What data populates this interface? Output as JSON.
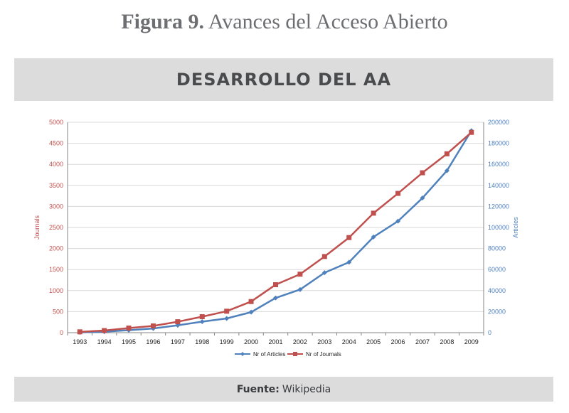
{
  "figure": {
    "label": "Figura 9.",
    "caption": "Avances del Acceso Abierto"
  },
  "banner": {
    "title": "DESARROLLO DEL AA"
  },
  "source": {
    "label": "Fuente:",
    "value": "Wikipedia"
  },
  "colors": {
    "journals": "#c0504d",
    "articles": "#4f81bd"
  },
  "chart_data": {
    "type": "line",
    "title": "",
    "x": [
      "1993",
      "1994",
      "1995",
      "1996",
      "1997",
      "1998",
      "1999",
      "2000",
      "2001",
      "2002",
      "2003",
      "2004",
      "2005",
      "2006",
      "2007",
      "2008",
      "2009"
    ],
    "y_left": {
      "label": "Journals",
      "range": [
        0,
        5000
      ],
      "ticks": [
        0,
        500,
        1000,
        1500,
        2000,
        2500,
        3000,
        3500,
        4000,
        4500,
        5000
      ]
    },
    "y_right": {
      "label": "Articles",
      "range": [
        0,
        200000
      ],
      "ticks": [
        0,
        20000,
        40000,
        60000,
        80000,
        100000,
        120000,
        140000,
        160000,
        180000,
        200000
      ]
    },
    "series": [
      {
        "name": "Nr of Articles",
        "axis": "right",
        "color": "#4f81bd",
        "marker": "diamond",
        "values": [
          300,
          900,
          2400,
          4000,
          7000,
          10500,
          13500,
          19500,
          33000,
          41000,
          57000,
          67000,
          91000,
          106000,
          128000,
          154000,
          192000
        ]
      },
      {
        "name": "Nr of Journals",
        "axis": "left",
        "color": "#c0504d",
        "marker": "square",
        "values": [
          20,
          50,
          110,
          160,
          260,
          380,
          510,
          740,
          1140,
          1390,
          1810,
          2260,
          2840,
          3310,
          3800,
          4250,
          4760
        ]
      }
    ],
    "legend_position": "bottom",
    "grid": "horizontal"
  }
}
